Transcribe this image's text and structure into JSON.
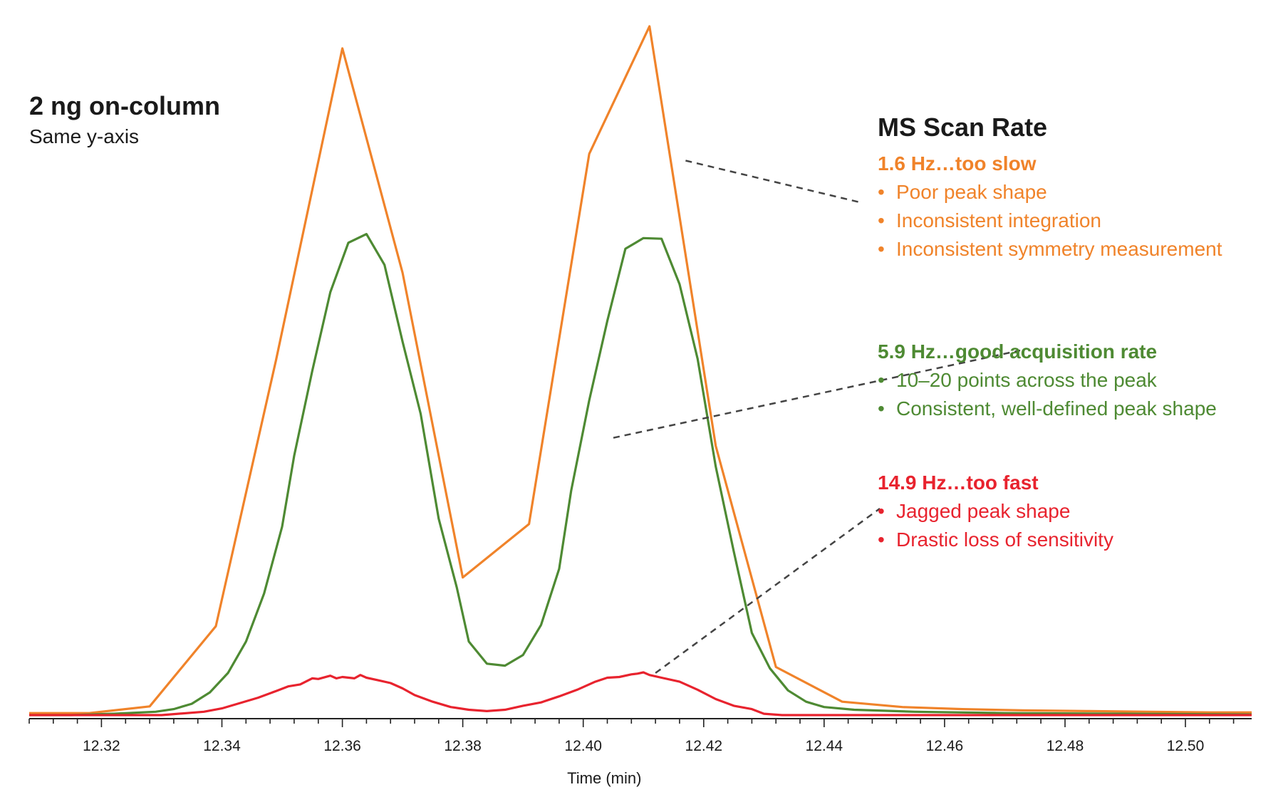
{
  "annotation": {
    "title": "2 ng on-column",
    "subtitle": "Same y-axis"
  },
  "legend": {
    "heading": "MS Scan Rate",
    "groups": [
      {
        "title": "1.6 Hz…too slow",
        "color": "#F0832A",
        "bullets": [
          "Poor peak shape",
          "Inconsistent integration",
          "Inconsistent symmetry measurement"
        ]
      },
      {
        "title": "5.9 Hz…good acquisition rate",
        "color": "#4E8A33",
        "bullets": [
          "10–20 points across the peak",
          "Consistent, well-defined peak shape"
        ]
      },
      {
        "title": "14.9 Hz…too fast",
        "color": "#E8232E",
        "bullets": [
          "Jagged peak shape",
          "Drastic loss of sensitivity"
        ]
      }
    ]
  },
  "chart_data": {
    "type": "line",
    "title": "",
    "xlabel": "Time (min)",
    "ylabel": "",
    "xlim": [
      12.308,
      12.511
    ],
    "ylim": [
      0,
      100
    ],
    "xticks": [
      12.32,
      12.34,
      12.36,
      12.38,
      12.4,
      12.42,
      12.44,
      12.46,
      12.48,
      12.5
    ],
    "xtick_labels": [
      "12.32",
      "12.34",
      "12.36",
      "12.38",
      "12.40",
      "12.42",
      "12.44",
      "12.46",
      "12.48",
      "12.50"
    ],
    "y_axis_shown": false,
    "grid": false,
    "series": [
      {
        "name": "1.6 Hz",
        "color": "#F0832A",
        "x": [
          12.308,
          12.318,
          12.328,
          12.339,
          12.349,
          12.36,
          12.37,
          12.38,
          12.391,
          12.401,
          12.411,
          12.422,
          12.432,
          12.443,
          12.453,
          12.463,
          12.473,
          12.484,
          12.494,
          12.504,
          12.511
        ],
        "y": [
          0.3,
          0.3,
          1.3,
          13.3,
          53.2,
          99.8,
          66.2,
          20.6,
          28.6,
          84.0,
          103.1,
          40.3,
          7.2,
          2.0,
          1.2,
          0.9,
          0.7,
          0.6,
          0.5,
          0.4,
          0.4
        ]
      },
      {
        "name": "5.9 Hz",
        "color": "#4E8A33",
        "x": [
          12.308,
          12.315,
          12.322,
          12.329,
          12.332,
          12.335,
          12.338,
          12.341,
          12.344,
          12.347,
          12.35,
          12.352,
          12.355,
          12.358,
          12.361,
          12.364,
          12.367,
          12.37,
          12.373,
          12.376,
          12.379,
          12.381,
          12.384,
          12.387,
          12.39,
          12.393,
          12.396,
          12.398,
          12.401,
          12.404,
          12.407,
          12.41,
          12.413,
          12.416,
          12.419,
          12.422,
          12.425,
          12.428,
          12.431,
          12.434,
          12.437,
          12.44,
          12.445,
          12.455,
          12.47,
          12.49,
          12.511
        ],
        "y": [
          0.0,
          0.0,
          0.2,
          0.5,
          0.9,
          1.7,
          3.4,
          6.3,
          11.0,
          18.2,
          28.2,
          38.8,
          51.5,
          63.3,
          70.7,
          72.0,
          67.4,
          55.9,
          45.1,
          29.4,
          19.1,
          11.0,
          7.7,
          7.4,
          9.0,
          13.5,
          21.9,
          33.6,
          47.1,
          59.0,
          69.8,
          71.4,
          71.3,
          64.5,
          53.3,
          37.2,
          24.5,
          12.3,
          7.0,
          3.7,
          2.0,
          1.2,
          0.8,
          0.5,
          0.3,
          0.2,
          0.1
        ]
      },
      {
        "name": "14.9 Hz",
        "color": "#E8232E",
        "x": [
          12.308,
          12.33,
          12.337,
          12.34,
          12.343,
          12.346,
          12.349,
          12.351,
          12.353,
          12.355,
          12.356,
          12.358,
          12.359,
          12.36,
          12.362,
          12.363,
          12.364,
          12.366,
          12.368,
          12.37,
          12.372,
          12.375,
          12.378,
          12.381,
          12.384,
          12.387,
          12.39,
          12.393,
          12.396,
          12.399,
          12.402,
          12.404,
          12.406,
          12.408,
          12.409,
          12.41,
          12.411,
          12.413,
          12.416,
          12.419,
          12.422,
          12.425,
          12.428,
          12.43,
          12.433,
          12.44,
          12.47,
          12.511
        ],
        "y": [
          0.0,
          0.0,
          0.5,
          1.0,
          1.8,
          2.6,
          3.6,
          4.3,
          4.6,
          5.5,
          5.4,
          5.9,
          5.5,
          5.7,
          5.5,
          6.0,
          5.6,
          5.2,
          4.8,
          4.0,
          3.0,
          2.0,
          1.2,
          0.8,
          0.6,
          0.8,
          1.4,
          1.9,
          2.8,
          3.8,
          5.0,
          5.6,
          5.7,
          6.1,
          6.2,
          6.4,
          6.0,
          5.6,
          5.0,
          3.8,
          2.4,
          1.4,
          0.9,
          0.2,
          0.0,
          0.0,
          0.0,
          0.0
        ]
      }
    ],
    "leader_lines": [
      {
        "series": "1.6 Hz",
        "from_x": 12.417,
        "from_y": 83.0,
        "to": "1.6 Hz…too slow"
      },
      {
        "series": "5.9 Hz",
        "from_x": 12.405,
        "from_y": 41.5,
        "to": "5.9 Hz…good acquisition rate"
      },
      {
        "series": "14.9 Hz",
        "from_x": 12.412,
        "from_y": 6.3,
        "to": "14.9 Hz…too fast"
      }
    ]
  }
}
